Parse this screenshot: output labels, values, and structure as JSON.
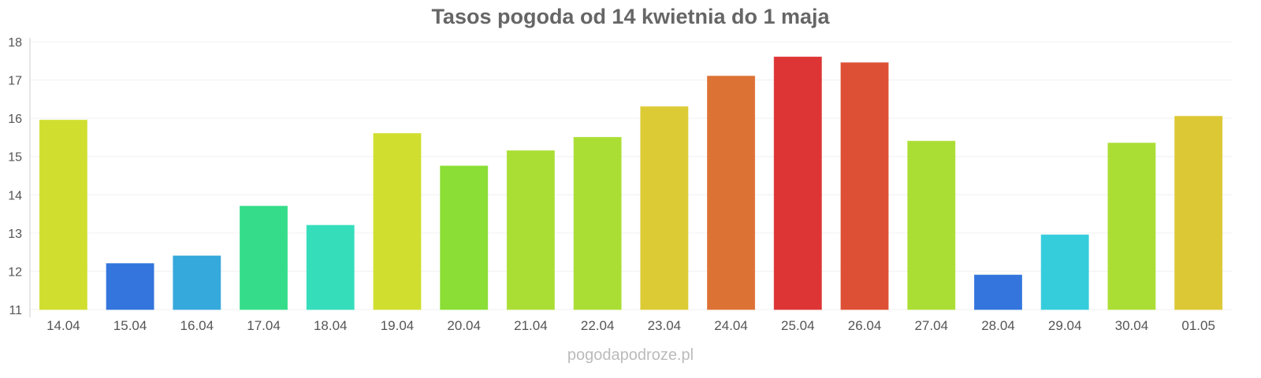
{
  "chart_data": {
    "type": "bar",
    "title": "Tasos pogoda od 14 kwietnia do 1 maja",
    "xlabel": "",
    "ylabel": "",
    "ylim": [
      11,
      18
    ],
    "yticks": [
      "11",
      "12",
      "13",
      "14",
      "15",
      "16",
      "17",
      "18"
    ],
    "grid": true,
    "categories": [
      "14.04",
      "15.04",
      "16.04",
      "17.04",
      "18.04",
      "19.04",
      "20.04",
      "21.04",
      "22.04",
      "23.04",
      "24.04",
      "25.04",
      "26.04",
      "27.04",
      "28.04",
      "29.04",
      "30.04",
      "01.05"
    ],
    "values": [
      15.95,
      12.2,
      12.4,
      13.7,
      13.2,
      15.6,
      14.75,
      15.15,
      15.5,
      16.3,
      17.1,
      17.6,
      17.45,
      15.4,
      11.9,
      12.95,
      15.35,
      16.05
    ],
    "colors": [
      "#d0de30",
      "#3375dd",
      "#35a8dc",
      "#35dd8a",
      "#35ddbb",
      "#d0de30",
      "#8ade35",
      "#abde35",
      "#abde35",
      "#dccb35",
      "#dd7235",
      "#dd3535",
      "#dd5035",
      "#abde35",
      "#3375dd",
      "#35cddc",
      "#abde35",
      "#dcc835"
    ]
  },
  "footer": "pogodapodroze.pl"
}
